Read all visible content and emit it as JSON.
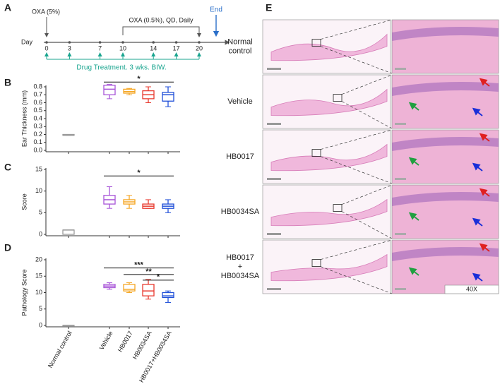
{
  "panel_labels": [
    "A",
    "B",
    "C",
    "D",
    "E"
  ],
  "timeline": {
    "day_label": "Day",
    "days": [
      0,
      3,
      7,
      10,
      14,
      17,
      20
    ],
    "induction": "OXA (5%)",
    "challenge": "OXA (0.5%), QD, Daily",
    "end": "End",
    "treatment": "Drug Treatment. 3 wks. BIW."
  },
  "chart_data": [
    {
      "type": "box",
      "ylabel": "Ear Thickness (mm)",
      "categories": [
        null,
        null,
        null,
        null,
        null
      ],
      "colors": [
        "#9a9a9a",
        "#a855d8",
        "#f5a623",
        "#e8392e",
        "#1f4fd8"
      ],
      "ylim": [
        0,
        0.8
      ],
      "yticks": [
        {
          "value": 0,
          "label": "0.0"
        },
        0.1,
        0.2,
        0.3,
        0.4,
        0.5,
        0.6,
        0.7,
        0.8
      ],
      "boxes": [
        {
          "min": 0.19,
          "q1": 0.19,
          "median": 0.19,
          "q3": 0.2,
          "max": 0.2
        },
        {
          "min": 0.65,
          "q1": 0.7,
          "median": 0.77,
          "q3": 0.82,
          "max": 0.83
        },
        {
          "min": 0.7,
          "q1": 0.72,
          "median": 0.74,
          "q3": 0.77,
          "max": 0.78
        },
        {
          "min": 0.6,
          "q1": 0.65,
          "median": 0.7,
          "q3": 0.75,
          "max": 0.8
        },
        {
          "min": 0.55,
          "q1": 0.62,
          "median": 0.7,
          "q3": 0.73,
          "max": 0.8
        }
      ],
      "significance": [
        {
          "from": 1,
          "to": 4,
          "y": 0.86,
          "label": "*"
        }
      ]
    },
    {
      "type": "box",
      "ylabel": "Score",
      "categories": [
        null,
        null,
        null,
        null,
        null
      ],
      "colors": [
        "#9a9a9a",
        "#a855d8",
        "#f5a623",
        "#e8392e",
        "#1f4fd8"
      ],
      "ylim": [
        0,
        15
      ],
      "yticks": [
        0,
        5,
        10,
        15
      ],
      "boxes": [
        {
          "min": 0,
          "q1": 0,
          "median": 1,
          "q3": 1,
          "max": 1
        },
        {
          "min": 6,
          "q1": 7,
          "median": 8,
          "q3": 9,
          "max": 11
        },
        {
          "min": 6,
          "q1": 7,
          "median": 7.5,
          "q3": 8,
          "max": 9
        },
        {
          "min": 6,
          "q1": 6,
          "median": 6.5,
          "q3": 7,
          "max": 8
        },
        {
          "min": 5,
          "q1": 6,
          "median": 6.5,
          "q3": 7,
          "max": 8
        }
      ],
      "significance": [
        {
          "from": 1,
          "to": 4,
          "y": 13.5,
          "label": "*"
        }
      ]
    },
    {
      "type": "box",
      "ylabel": "Pathology Score",
      "categories": [
        "Normal control",
        "Vehicle",
        "HB0017",
        "HB0034SA",
        "HB0017+HB0034SA"
      ],
      "colors": [
        "#9a9a9a",
        "#a855d8",
        "#f5a623",
        "#e8392e",
        "#1f4fd8"
      ],
      "ylim": [
        0,
        20
      ],
      "yticks": [
        0,
        5,
        10,
        15,
        20
      ],
      "boxes": [
        {
          "min": 0,
          "q1": 0,
          "median": 0,
          "q3": 0,
          "max": 0
        },
        {
          "min": 11,
          "q1": 11.5,
          "median": 12,
          "q3": 12.5,
          "max": 13
        },
        {
          "min": 10,
          "q1": 10.5,
          "median": 11,
          "q3": 12.5,
          "max": 13
        },
        {
          "min": 8,
          "q1": 9,
          "median": 10.5,
          "q3": 12.5,
          "max": 14
        },
        {
          "min": 7,
          "q1": 8.5,
          "median": 9,
          "q3": 10,
          "max": 10.5
        }
      ],
      "significance": [
        {
          "from": 1,
          "to": 4,
          "y": 17.5,
          "label": "***"
        },
        {
          "from": 2,
          "to": 4,
          "y": 15.5,
          "label": "**"
        },
        {
          "from": 3,
          "to": 4,
          "y": 13.8,
          "label": "*"
        }
      ]
    }
  ],
  "histology": {
    "rows": [
      [
        "Normal",
        "control"
      ],
      [
        "Vehicle"
      ],
      [
        "HB0017"
      ],
      [
        "HB0034SA"
      ],
      [
        "HB0017",
        "+",
        "HB0034SA"
      ]
    ],
    "magnification": "40X"
  }
}
